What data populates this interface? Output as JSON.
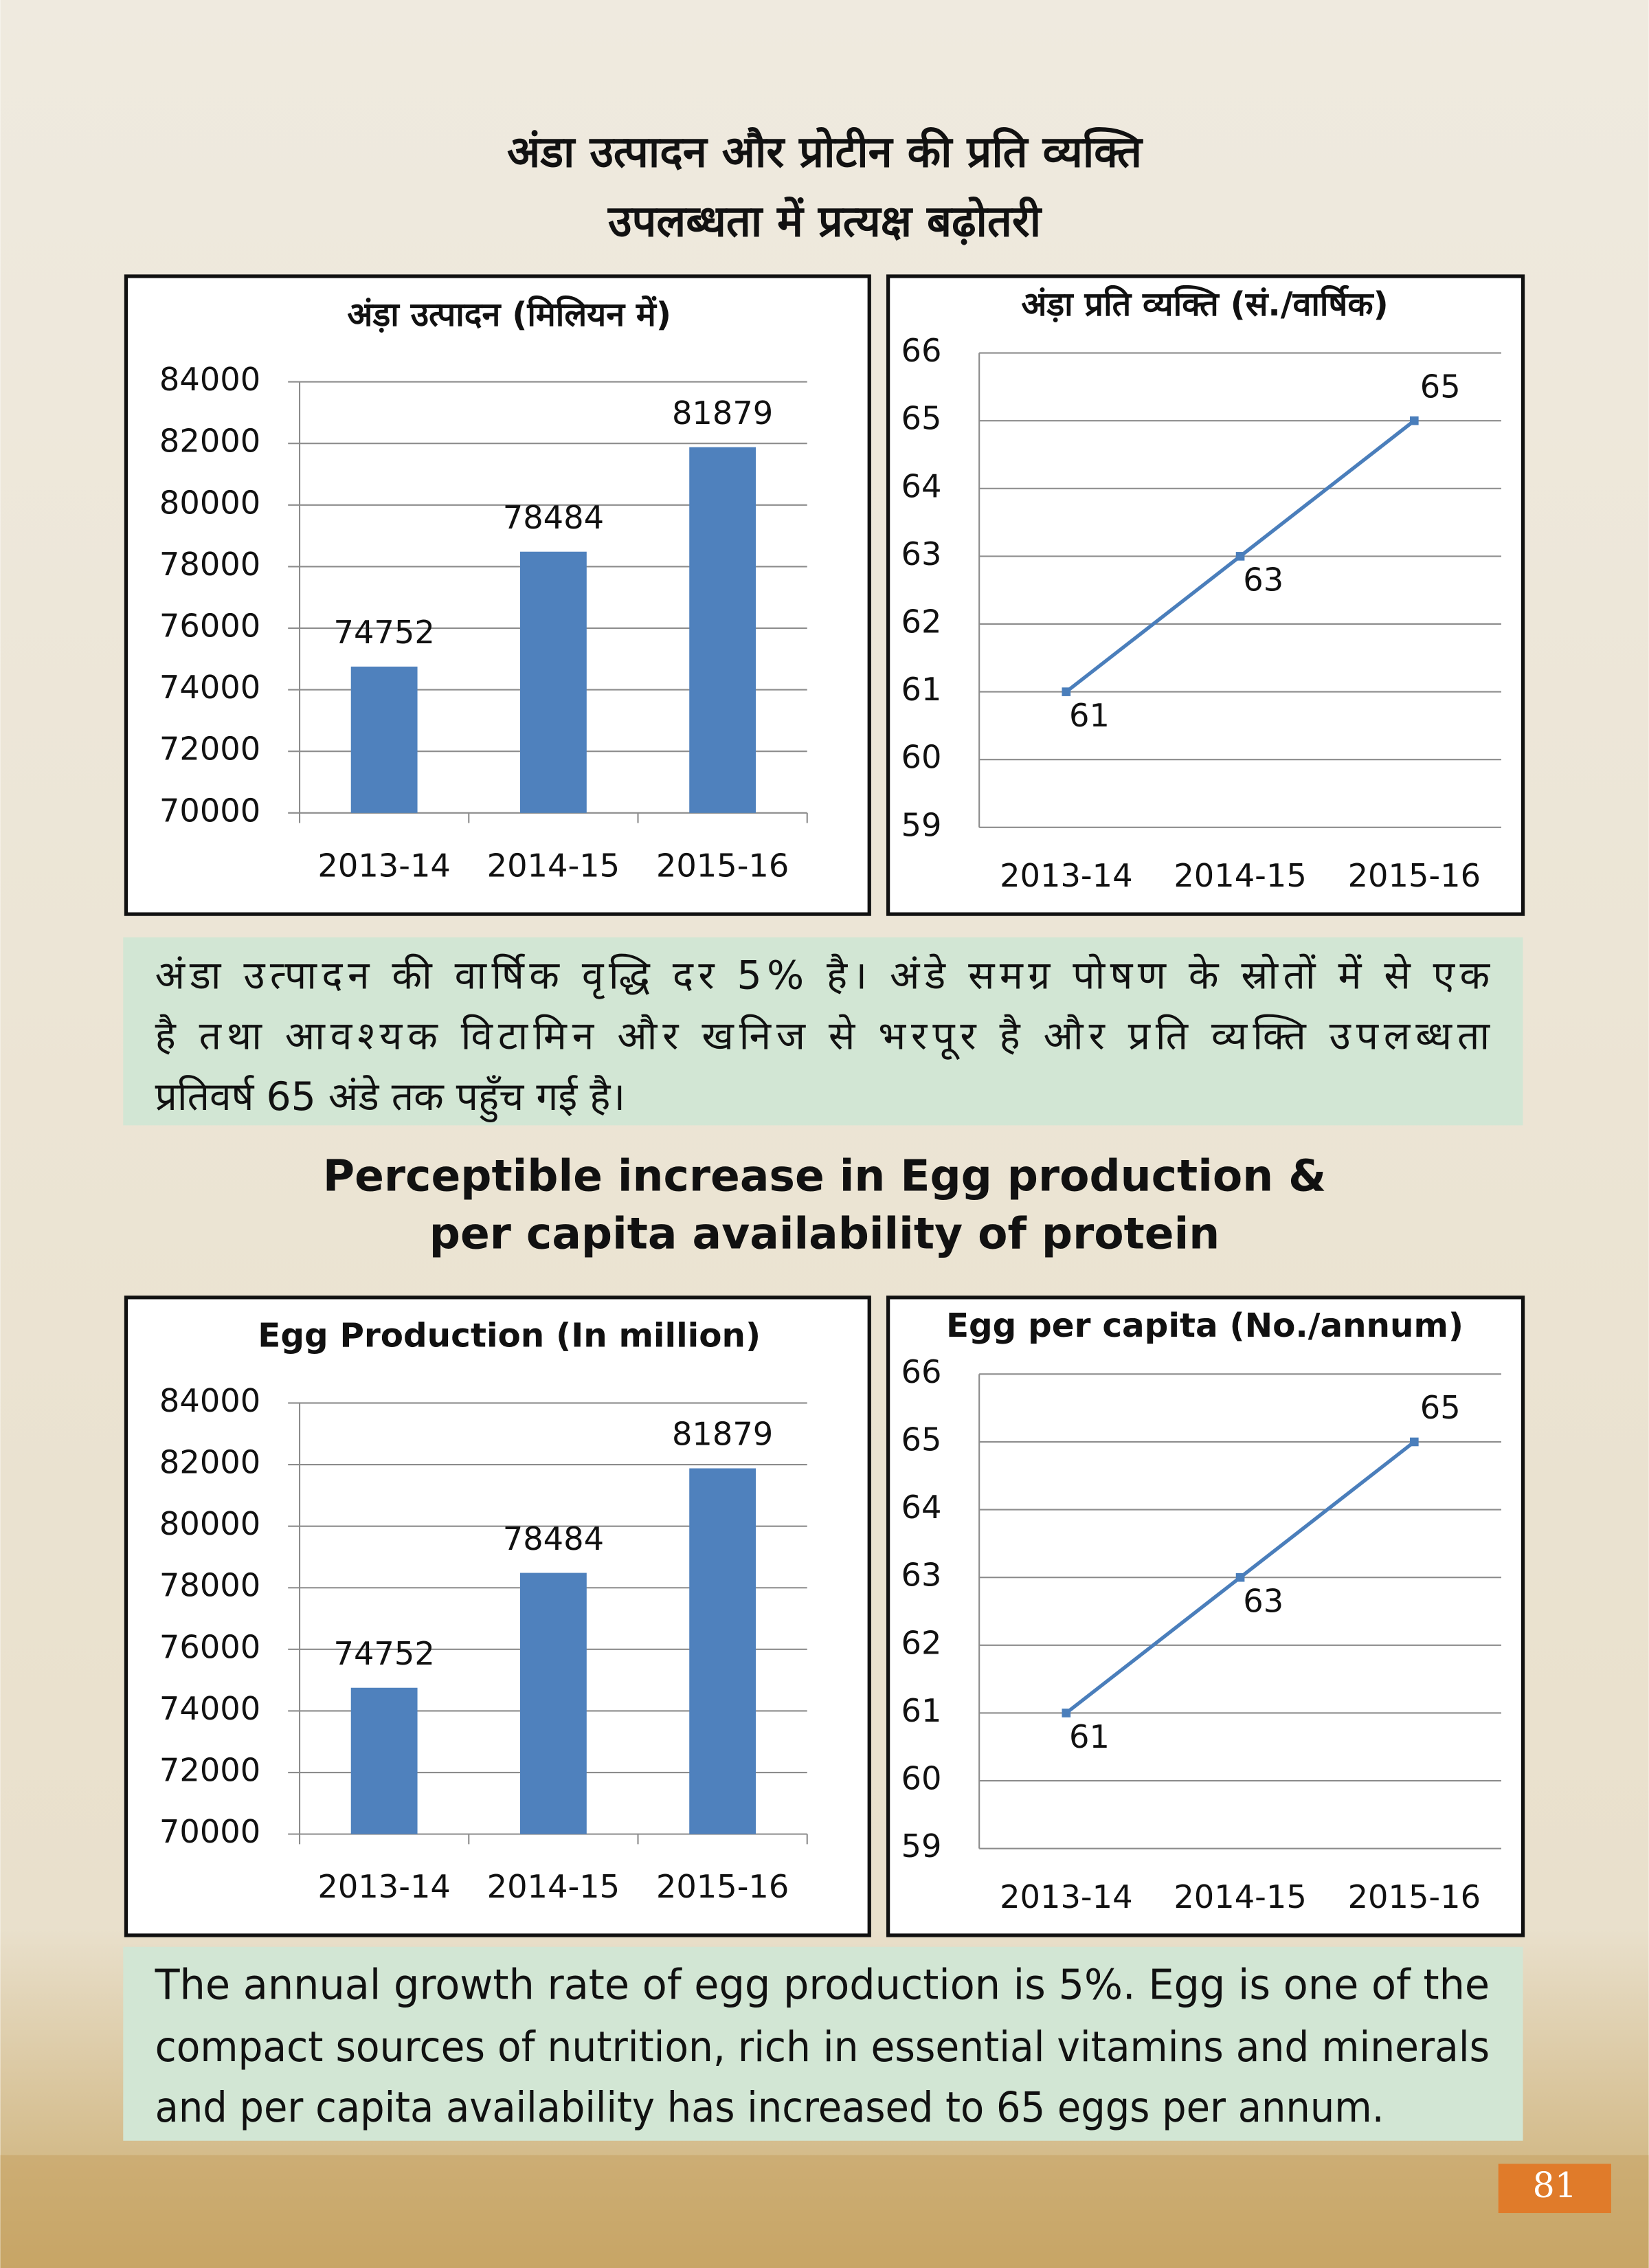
{
  "hindi_heading": [
    "अंडा उत्पादन और प्रोटीन की प्रति व्यक्ति",
    "उपलब्धता में प्रत्यक्ष बढ़ोतरी"
  ],
  "hindi_paragraph": [
    "अंडा उत्पादन की वार्षिक वृद्धि दर 5% है। अंडे समग्र पोषण के स्रोतों में से एक",
    "है तथा आवश्यक विटामिन और खनिज से भरपूर है और प्रति व्यक्ति उपलब्धता",
    "प्रतिवर्ष 65 अंडे तक पहुँच गई है।"
  ],
  "english_heading": [
    "Perceptible increase in Egg production &",
    "per capita availability of protein"
  ],
  "english_paragraph": [
    "The annual growth rate of egg production is 5%. Egg is one of the",
    "compact sources of nutrition, rich in essential vitamins and minerals",
    "and per capita availability has increased to 65 eggs per annum."
  ],
  "page_number": "81",
  "chart_data": [
    {
      "type": "bar",
      "title": "अंड़ा उत्पादन (मिलियन में)",
      "categories": [
        "2013-14",
        "2014-15",
        "2015-16"
      ],
      "values": [
        74752,
        78484,
        81879
      ],
      "color": "#4f81bd",
      "ylim": [
        70000,
        84000
      ],
      "yticks": [
        70000,
        72000,
        74000,
        76000,
        78000,
        80000,
        82000,
        84000
      ],
      "grid": true
    },
    {
      "type": "line",
      "title": "अंड़ा प्रति व्यक्ति (सं./वार्षिक)",
      "categories": [
        "2013-14",
        "2014-15",
        "2015-16"
      ],
      "values": [
        61,
        63,
        65
      ],
      "color": "#4a7ebb",
      "ylim": [
        59,
        66
      ],
      "yticks": [
        59,
        60,
        61,
        62,
        63,
        64,
        65,
        66
      ],
      "grid": true
    },
    {
      "type": "bar",
      "title": "Egg Production (In million)",
      "categories": [
        "2013-14",
        "2014-15",
        "2015-16"
      ],
      "values": [
        74752,
        78484,
        81879
      ],
      "color": "#4f81bd",
      "ylim": [
        70000,
        84000
      ],
      "yticks": [
        70000,
        72000,
        74000,
        76000,
        78000,
        80000,
        82000,
        84000
      ],
      "grid": true
    },
    {
      "type": "line",
      "title": "Egg per capita (No./annum)",
      "categories": [
        "2013-14",
        "2014-15",
        "2015-16"
      ],
      "values": [
        61,
        63,
        65
      ],
      "color": "#4a7ebb",
      "ylim": [
        59,
        66
      ],
      "yticks": [
        59,
        60,
        61,
        62,
        63,
        64,
        65,
        66
      ],
      "grid": true
    }
  ]
}
